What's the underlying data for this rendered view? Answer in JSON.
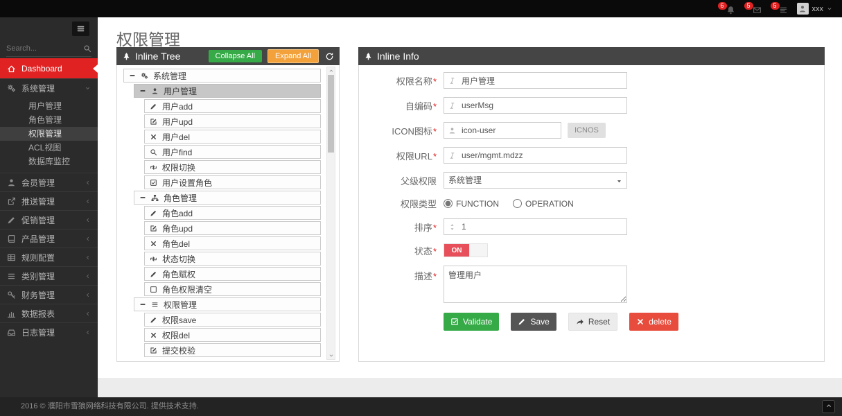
{
  "colors": {
    "accent_red": "#e02222",
    "green": "#35aa47",
    "orange": "#f2a13b",
    "toggle_red": "#e7505a",
    "delete_red": "#e74c3c",
    "sidebar_bg": "#2b2b2b",
    "panel_header_bg": "#454545"
  },
  "topbar": {
    "notifications": [
      {
        "icon": "bell-icon",
        "count": "6"
      },
      {
        "icon": "envelope-icon",
        "count": "5"
      },
      {
        "icon": "tasks-icon",
        "count": "5"
      }
    ],
    "user": {
      "name": "xxx"
    }
  },
  "sidebar": {
    "search_placeholder": "Search...",
    "items": [
      {
        "label": "Dashboard",
        "icon": "home-icon",
        "active": true,
        "arrow": true
      },
      {
        "label": "系统管理",
        "icon": "gears-icon",
        "chevron": "down",
        "expanded": true,
        "children": [
          {
            "label": "用户管理"
          },
          {
            "label": "角色管理"
          },
          {
            "label": "权限管理",
            "active": true
          },
          {
            "label": "ACL视图"
          },
          {
            "label": "数据库监控"
          }
        ]
      },
      {
        "label": "会员管理",
        "icon": "user-icon",
        "chevron": "left"
      },
      {
        "label": "推送管理",
        "icon": "share-icon",
        "chevron": "left"
      },
      {
        "label": "促销管理",
        "icon": "pencil-icon",
        "chevron": "left"
      },
      {
        "label": "产品管理",
        "icon": "book-icon",
        "chevron": "left"
      },
      {
        "label": "规则配置",
        "icon": "table-icon",
        "chevron": "left"
      },
      {
        "label": "类别管理",
        "icon": "list-icon",
        "chevron": "left"
      },
      {
        "label": "财务管理",
        "icon": "key-icon",
        "chevron": "left"
      },
      {
        "label": "数据报表",
        "icon": "chart-icon",
        "chevron": "left"
      },
      {
        "label": "日志管理",
        "icon": "inbox-icon",
        "chevron": "left"
      }
    ]
  },
  "page": {
    "title": "权限管理"
  },
  "tree_panel": {
    "title": "Inline Tree",
    "icon": "tree-icon",
    "collapse_all": "Collapse All",
    "expand_all": "Expand All",
    "nodes": [
      {
        "level": 0,
        "icon": "gears-icon",
        "label": "系统管理",
        "toggle": true
      },
      {
        "level": 1,
        "icon": "user-icon",
        "label": "用户管理",
        "toggle": true,
        "selected": true
      },
      {
        "level": 2,
        "icon": "pencil-icon",
        "label": "用户add"
      },
      {
        "level": 2,
        "icon": "edit-icon",
        "label": "用户upd"
      },
      {
        "level": 2,
        "icon": "close-icon",
        "label": "用户del"
      },
      {
        "level": 2,
        "icon": "search-icon",
        "label": "用户find"
      },
      {
        "level": 2,
        "icon": "retweet-icon",
        "label": "权限切换"
      },
      {
        "level": 2,
        "icon": "check-square-icon",
        "label": "用户设置角色"
      },
      {
        "level": 1,
        "icon": "sitemap-icon",
        "label": "角色管理",
        "toggle": true
      },
      {
        "level": 2,
        "icon": "pencil-icon",
        "label": "角色add"
      },
      {
        "level": 2,
        "icon": "edit-icon",
        "label": "角色upd"
      },
      {
        "level": 2,
        "icon": "close-icon",
        "label": "角色del"
      },
      {
        "level": 2,
        "icon": "retweet-icon",
        "label": "状态切换"
      },
      {
        "level": 2,
        "icon": "pencil-icon",
        "label": "角色赋权"
      },
      {
        "level": 2,
        "icon": "square-icon",
        "label": "角色权限清空"
      },
      {
        "level": 1,
        "icon": "list-icon",
        "label": "权限管理",
        "toggle": true
      },
      {
        "level": 2,
        "icon": "pencil-icon",
        "label": "权限save"
      },
      {
        "level": 2,
        "icon": "close-icon",
        "label": "权限del"
      },
      {
        "level": 2,
        "icon": "edit-icon",
        "label": "提交校验"
      }
    ]
  },
  "info_panel": {
    "title": "Inline Info",
    "icon": "tree-icon",
    "required_mark": "*",
    "fields": {
      "name": {
        "label": "权限名称",
        "required": true,
        "icon": "italic-icon",
        "value": "用户管理"
      },
      "code": {
        "label": "自编码",
        "required": true,
        "icon": "italic-icon",
        "value": "userMsg"
      },
      "icon": {
        "label": "ICON图标",
        "required": true,
        "icon": "user-icon",
        "value": "icon-user",
        "button_label": "ICNOS"
      },
      "url": {
        "label": "权限URL",
        "required": true,
        "icon": "italic-icon",
        "value": "user/mgmt.mdzz"
      },
      "parent": {
        "label": "父级权限",
        "value": "系统管理"
      },
      "type": {
        "label": "权限类型",
        "options": [
          "FUNCTION",
          "OPERATION"
        ],
        "selected": "FUNCTION"
      },
      "sort": {
        "label": "排序",
        "required": true,
        "icon": "sort-icon",
        "value": "1"
      },
      "status": {
        "label": "状态",
        "required": true,
        "value": "ON"
      },
      "desc": {
        "label": "描述",
        "required": true,
        "value": "管理用户"
      }
    },
    "buttons": [
      {
        "label": "Validate",
        "icon": "check-square-icon",
        "style": "green",
        "name": "validate-button"
      },
      {
        "label": "Save",
        "icon": "pencil-icon",
        "style": "dark",
        "name": "save-button"
      },
      {
        "label": "Reset",
        "icon": "reply-icon",
        "style": "light",
        "name": "reset-button"
      },
      {
        "label": "delete",
        "icon": "close-icon",
        "style": "red",
        "name": "delete-button"
      }
    ]
  },
  "footer": {
    "text": "2016 © 濮阳市雪狼网络科技有限公司. 提供技术支持."
  }
}
